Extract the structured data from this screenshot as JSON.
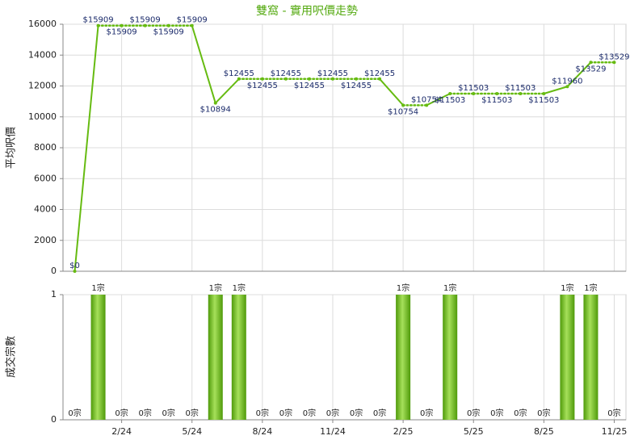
{
  "chart_data": [
    {
      "type": "line",
      "title": "雙窩 - 實用呎價走勢",
      "y_label": "平均呎價",
      "color": "#66bb11",
      "values": [
        0,
        15909,
        15909,
        15909,
        15909,
        15909,
        10894,
        12455,
        12455,
        12455,
        12455,
        12455,
        12455,
        12455,
        10754,
        10754,
        11503,
        11503,
        11503,
        11503,
        11503,
        11960,
        13529,
        13529
      ],
      "value_labels": [
        "$0",
        "$15909",
        "$15909",
        "$15909",
        "$15909",
        "$15909",
        "$10894",
        "$12455",
        "$12455",
        "$12455",
        "$12455",
        "$12455",
        "$12455",
        "$12455",
        "$10754",
        "$10754",
        "$11503",
        "$11503",
        "$11503",
        "$11503",
        "$11503",
        "$11960",
        "$13529",
        "$13529"
      ],
      "ylim": [
        0,
        16000
      ],
      "yticks": [
        0,
        2000,
        4000,
        6000,
        8000,
        10000,
        12000,
        14000,
        16000
      ],
      "grid": true
    },
    {
      "type": "bar",
      "y_label": "成交宗數",
      "color": "#66bb11",
      "categories": [
        null,
        null,
        "2/24",
        null,
        null,
        "5/24",
        null,
        null,
        "8/24",
        null,
        null,
        "11/24",
        null,
        null,
        "2/25",
        null,
        null,
        "5/25",
        null,
        null,
        "8/25",
        null,
        null,
        "11/25"
      ],
      "values": [
        0,
        1,
        0,
        0,
        0,
        0,
        1,
        1,
        0,
        0,
        0,
        0,
        0,
        0,
        1,
        0,
        1,
        0,
        0,
        0,
        0,
        1,
        1,
        0
      ],
      "value_labels": [
        "0宗",
        "1宗",
        "0宗",
        "0宗",
        "0宗",
        "0宗",
        "1宗",
        "1宗",
        "0宗",
        "0宗",
        "0宗",
        "0宗",
        "0宗",
        "0宗",
        "1宗",
        "0宗",
        "1宗",
        "0宗",
        "0宗",
        "0宗",
        "0宗",
        "1宗",
        "1宗",
        "0宗"
      ],
      "ylim": [
        0,
        1
      ],
      "yticks": [
        0,
        1
      ],
      "grid": true
    }
  ]
}
